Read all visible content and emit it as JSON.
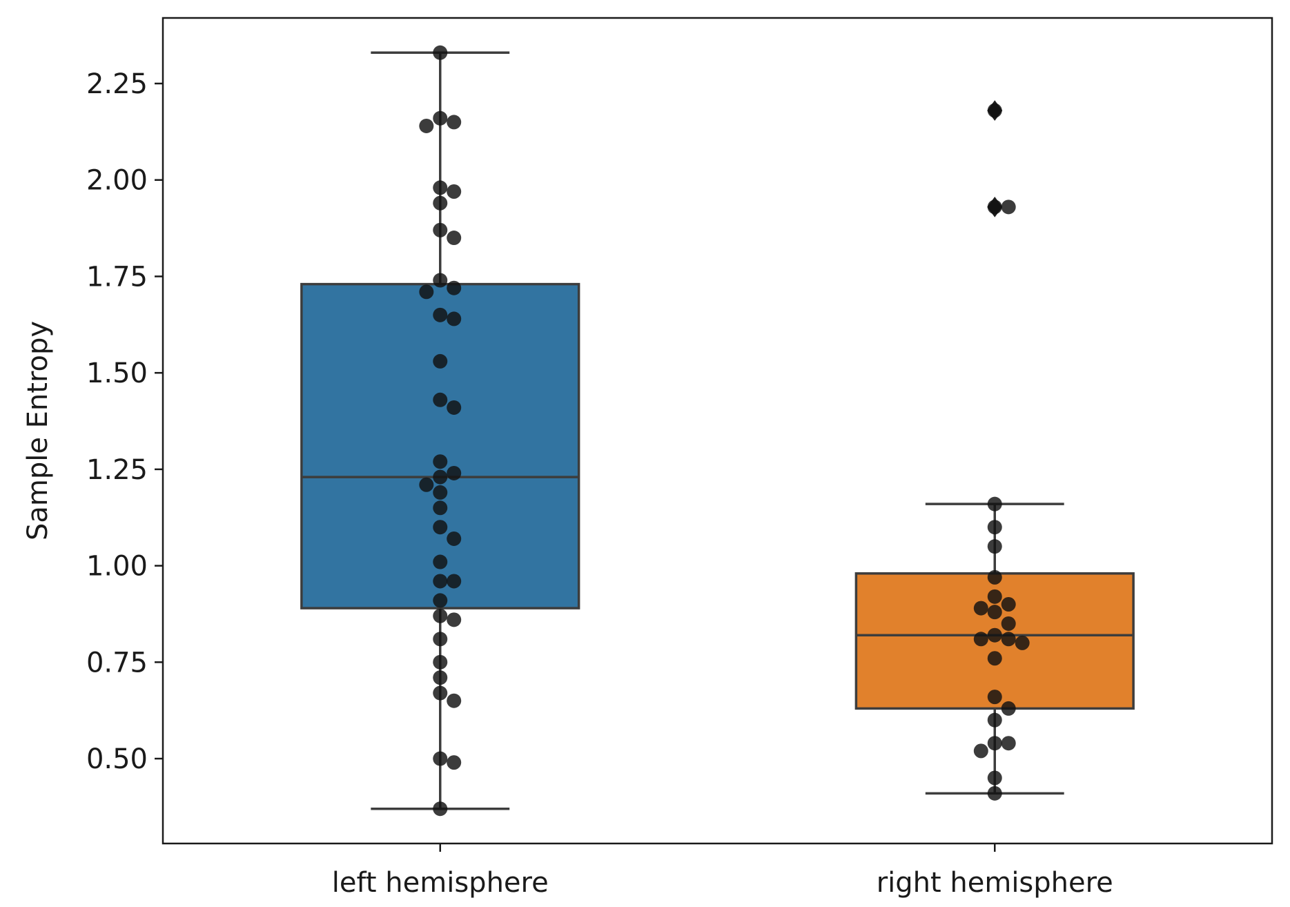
{
  "chart_data": {
    "type": "box",
    "ylabel": "Sample Entropy",
    "xlabel": "",
    "ylim": [
      0.28,
      2.42
    ],
    "yticks": [
      0.5,
      0.75,
      1.0,
      1.25,
      1.5,
      1.75,
      2.0,
      2.25
    ],
    "ytick_labels": [
      "0.50",
      "0.75",
      "1.00",
      "1.25",
      "1.50",
      "1.75",
      "2.00",
      "2.25"
    ],
    "grid": false,
    "categories": [
      "left hemisphere",
      "right hemisphere"
    ],
    "boxes": [
      {
        "category": "left hemisphere",
        "color": "#3274a1",
        "whisker_low": 0.37,
        "q1": 0.89,
        "median": 1.23,
        "q3": 1.73,
        "whisker_high": 2.33,
        "outliers": [],
        "points": [
          2.33,
          2.15,
          2.14,
          2.16,
          1.97,
          1.98,
          1.94,
          1.87,
          1.85,
          1.72,
          1.71,
          1.74,
          1.65,
          1.64,
          1.53,
          1.43,
          1.41,
          1.27,
          1.23,
          1.21,
          1.24,
          1.19,
          1.15,
          1.1,
          1.07,
          1.01,
          0.96,
          0.96,
          0.91,
          0.87,
          0.86,
          0.81,
          0.75,
          0.71,
          0.67,
          0.65,
          0.5,
          0.49,
          0.37
        ]
      },
      {
        "category": "right hemisphere",
        "color": "#e1812c",
        "whisker_low": 0.41,
        "q1": 0.63,
        "median": 0.82,
        "q3": 0.98,
        "whisker_high": 1.16,
        "outliers": [
          2.18,
          1.93
        ],
        "points": [
          2.18,
          1.93,
          1.93,
          1.16,
          1.1,
          1.05,
          0.97,
          0.9,
          0.92,
          0.89,
          0.88,
          0.85,
          0.82,
          0.81,
          0.8,
          0.81,
          0.76,
          0.66,
          0.63,
          0.6,
          0.54,
          0.54,
          0.52,
          0.45,
          0.41
        ]
      }
    ]
  }
}
